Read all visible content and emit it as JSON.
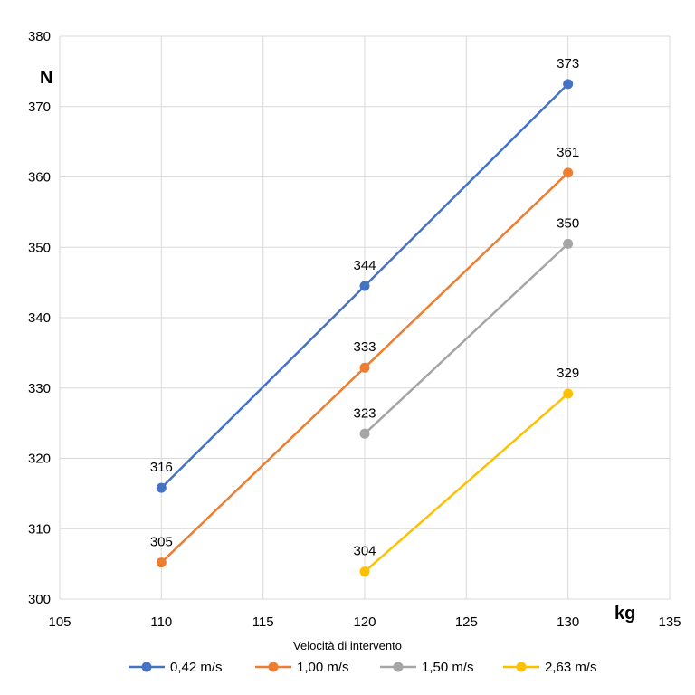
{
  "chart_data": {
    "type": "line",
    "title": "",
    "xlabel": "kg",
    "ylabel": "N",
    "xlim": [
      105,
      135
    ],
    "ylim": [
      300,
      380
    ],
    "xticks": [
      105,
      110,
      115,
      120,
      125,
      130,
      135
    ],
    "yticks": [
      300,
      310,
      320,
      330,
      340,
      350,
      360,
      370,
      380
    ],
    "grid": true,
    "legend_title": "Velocità di intervento",
    "legend_position": "bottom",
    "series": [
      {
        "name": "0,42 m/s",
        "color": "#4472C4",
        "x": [
          110,
          120,
          130
        ],
        "values": [
          315.8,
          344.5,
          373.2
        ],
        "labels": [
          "316",
          "344",
          "373"
        ]
      },
      {
        "name": "1,00 m/s",
        "color": "#ED7D31",
        "x": [
          110,
          120,
          130
        ],
        "values": [
          305.2,
          332.9,
          360.6
        ],
        "labels": [
          "305",
          "333",
          "361"
        ]
      },
      {
        "name": "1,50 m/s",
        "color": "#A5A5A5",
        "x": [
          120,
          130
        ],
        "values": [
          323.5,
          350.5
        ],
        "labels": [
          "323",
          "350"
        ]
      },
      {
        "name": "2,63 m/s",
        "color": "#FFC000",
        "x": [
          120,
          130
        ],
        "values": [
          303.9,
          329.2
        ],
        "labels": [
          "304",
          "329"
        ]
      }
    ]
  }
}
